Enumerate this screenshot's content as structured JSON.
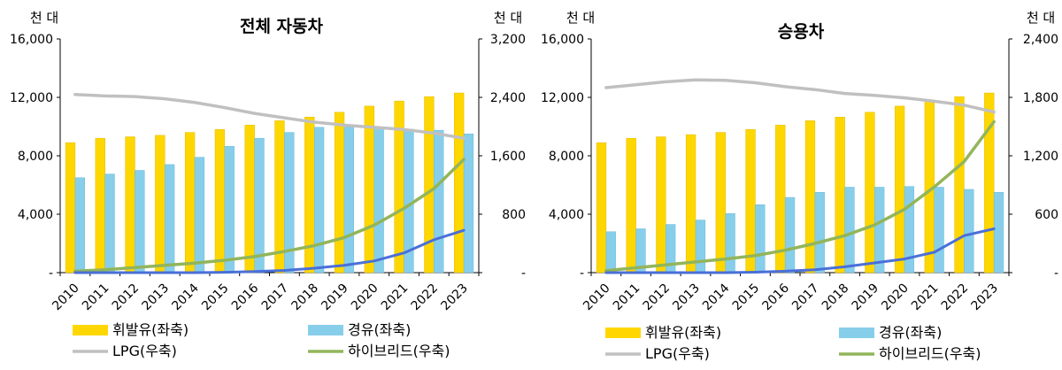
{
  "colors": {
    "gasoline": "#FFD700",
    "gasoline_edge": "#E6B800",
    "diesel": "#87CEEB",
    "diesel_edge": "#6FB8D8",
    "lpg": "#C0C0C0",
    "hybrid": "#92B55A",
    "electric": "#4A6FD8",
    "axis": "#000000",
    "background": "#FFFFFF"
  },
  "chart_data": [
    {
      "type": "bar",
      "title": "전체 자동차",
      "left_unit": "천 대",
      "right_unit": "천 대",
      "categories": [
        "2010",
        "2011",
        "2012",
        "2013",
        "2014",
        "2015",
        "2016",
        "2017",
        "2018",
        "2019",
        "2020",
        "2021",
        "2022",
        "2023"
      ],
      "left_ticks": [
        "-",
        "4,000",
        "8,000",
        "12,000",
        "16,000"
      ],
      "right_ticks": [
        "-",
        "800",
        "1,600",
        "2,400",
        "3,200"
      ],
      "ylim_left": [
        0,
        16000
      ],
      "ylim_right": [
        0,
        3200
      ],
      "series": [
        {
          "name": "휘발유(좌축)",
          "kind": "bar",
          "axis": "left",
          "values": [
            8900,
            9200,
            9300,
            9400,
            9600,
            9800,
            10100,
            10400,
            10650,
            10980,
            11400,
            11750,
            12050,
            12300
          ]
        },
        {
          "name": "경유(좌축)",
          "kind": "bar",
          "axis": "left",
          "values": [
            6500,
            6750,
            7000,
            7400,
            7900,
            8650,
            9200,
            9600,
            9950,
            9960,
            9950,
            9820,
            9750,
            9500
          ]
        },
        {
          "name": "LPG(우축)",
          "kind": "line",
          "axis": "right",
          "values": [
            2440,
            2420,
            2410,
            2380,
            2330,
            2260,
            2180,
            2120,
            2060,
            2020,
            1990,
            1960,
            1910,
            1840
          ]
        },
        {
          "name": "하이브리드(우축)",
          "kind": "line",
          "axis": "right",
          "values": [
            20,
            40,
            70,
            100,
            130,
            170,
            220,
            290,
            370,
            480,
            650,
            880,
            1150,
            1550
          ]
        },
        {
          "kind": "line",
          "axis": "right",
          "values": [
            0,
            0,
            0,
            0,
            0,
            5,
            15,
            30,
            60,
            100,
            160,
            270,
            450,
            580
          ]
        }
      ]
    },
    {
      "type": "bar",
      "title": "승용차",
      "left_unit": "천 대",
      "right_unit": "천 대",
      "categories": [
        "2010",
        "2011",
        "2012",
        "2013",
        "2014",
        "2015",
        "2016",
        "2017",
        "2018",
        "2019",
        "2020",
        "2021",
        "2022",
        "2023"
      ],
      "left_ticks": [
        "-",
        "4,000",
        "8,000",
        "12,000",
        "16,000"
      ],
      "right_ticks": [
        "-",
        "600",
        "1,200",
        "1,800",
        "2,400"
      ],
      "ylim_left": [
        0,
        16000
      ],
      "ylim_right": [
        0,
        2400
      ],
      "series": [
        {
          "name": "휘발유(좌축)",
          "kind": "bar",
          "axis": "left",
          "values": [
            8900,
            9200,
            9300,
            9450,
            9600,
            9800,
            10100,
            10400,
            10650,
            10980,
            11400,
            11750,
            12050,
            12300
          ]
        },
        {
          "name": "경유(좌축)",
          "kind": "bar",
          "axis": "left",
          "values": [
            2800,
            3000,
            3300,
            3600,
            4050,
            4650,
            5150,
            5500,
            5850,
            5850,
            5900,
            5850,
            5700,
            5500
          ]
        },
        {
          "name": "LPG(우축)",
          "kind": "line",
          "axis": "right",
          "values": [
            1900,
            1930,
            1960,
            1980,
            1975,
            1950,
            1910,
            1880,
            1840,
            1820,
            1795,
            1760,
            1720,
            1650
          ]
        },
        {
          "name": "하이브리드(우축)",
          "kind": "line",
          "axis": "right",
          "values": [
            20,
            50,
            80,
            110,
            140,
            175,
            230,
            300,
            380,
            490,
            650,
            880,
            1140,
            1550
          ]
        },
        {
          "kind": "line",
          "axis": "right",
          "values": [
            0,
            0,
            0,
            0,
            0,
            5,
            15,
            30,
            60,
            100,
            140,
            210,
            380,
            450
          ]
        }
      ]
    }
  ]
}
